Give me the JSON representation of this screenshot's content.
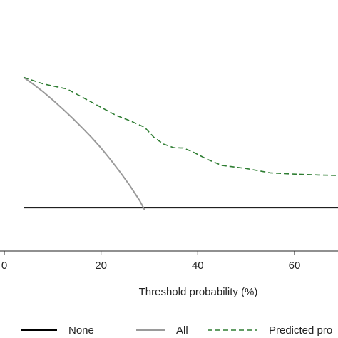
{
  "chart_data": {
    "type": "line",
    "title": "",
    "xlabel": "Threshold probability (%)",
    "ylabel": "",
    "xlim": [
      0,
      69
    ],
    "ylim": [
      -0.1,
      0.45
    ],
    "x_ticks": [
      {
        "value": 0,
        "label": "0"
      },
      {
        "value": 20,
        "label": "20"
      },
      {
        "value": 40,
        "label": "40"
      },
      {
        "value": 60,
        "label": "60"
      }
    ],
    "grid": false,
    "legend_position": "bottom",
    "series": [
      {
        "name": "None",
        "color": "#000000",
        "style": "solid",
        "x": [
          4,
          69
        ],
        "y": [
          0,
          0
        ]
      },
      {
        "name": "All",
        "color": "#9a9a9a",
        "style": "solid",
        "x": [
          4,
          6,
          8,
          10,
          12,
          14,
          16,
          18,
          20,
          22,
          24,
          26,
          28,
          29
        ],
        "y": [
          0.3,
          0.284,
          0.267,
          0.248,
          0.228,
          0.207,
          0.185,
          0.162,
          0.137,
          0.11,
          0.081,
          0.05,
          0.016,
          -0.005
        ]
      },
      {
        "name": "Predicted probability",
        "color": "#2e7d32",
        "style": "dashed",
        "x": [
          4,
          8,
          13,
          18,
          23,
          26,
          29,
          31,
          33,
          35,
          37,
          39,
          42,
          45,
          50,
          55,
          60,
          65,
          69
        ],
        "y": [
          0.3,
          0.285,
          0.273,
          0.243,
          0.213,
          0.2,
          0.185,
          0.161,
          0.146,
          0.138,
          0.137,
          0.128,
          0.111,
          0.097,
          0.09,
          0.08,
          0.077,
          0.075,
          0.074
        ]
      }
    ],
    "legend": {
      "entries": [
        "None",
        "All",
        "Predicted pro"
      ]
    }
  }
}
